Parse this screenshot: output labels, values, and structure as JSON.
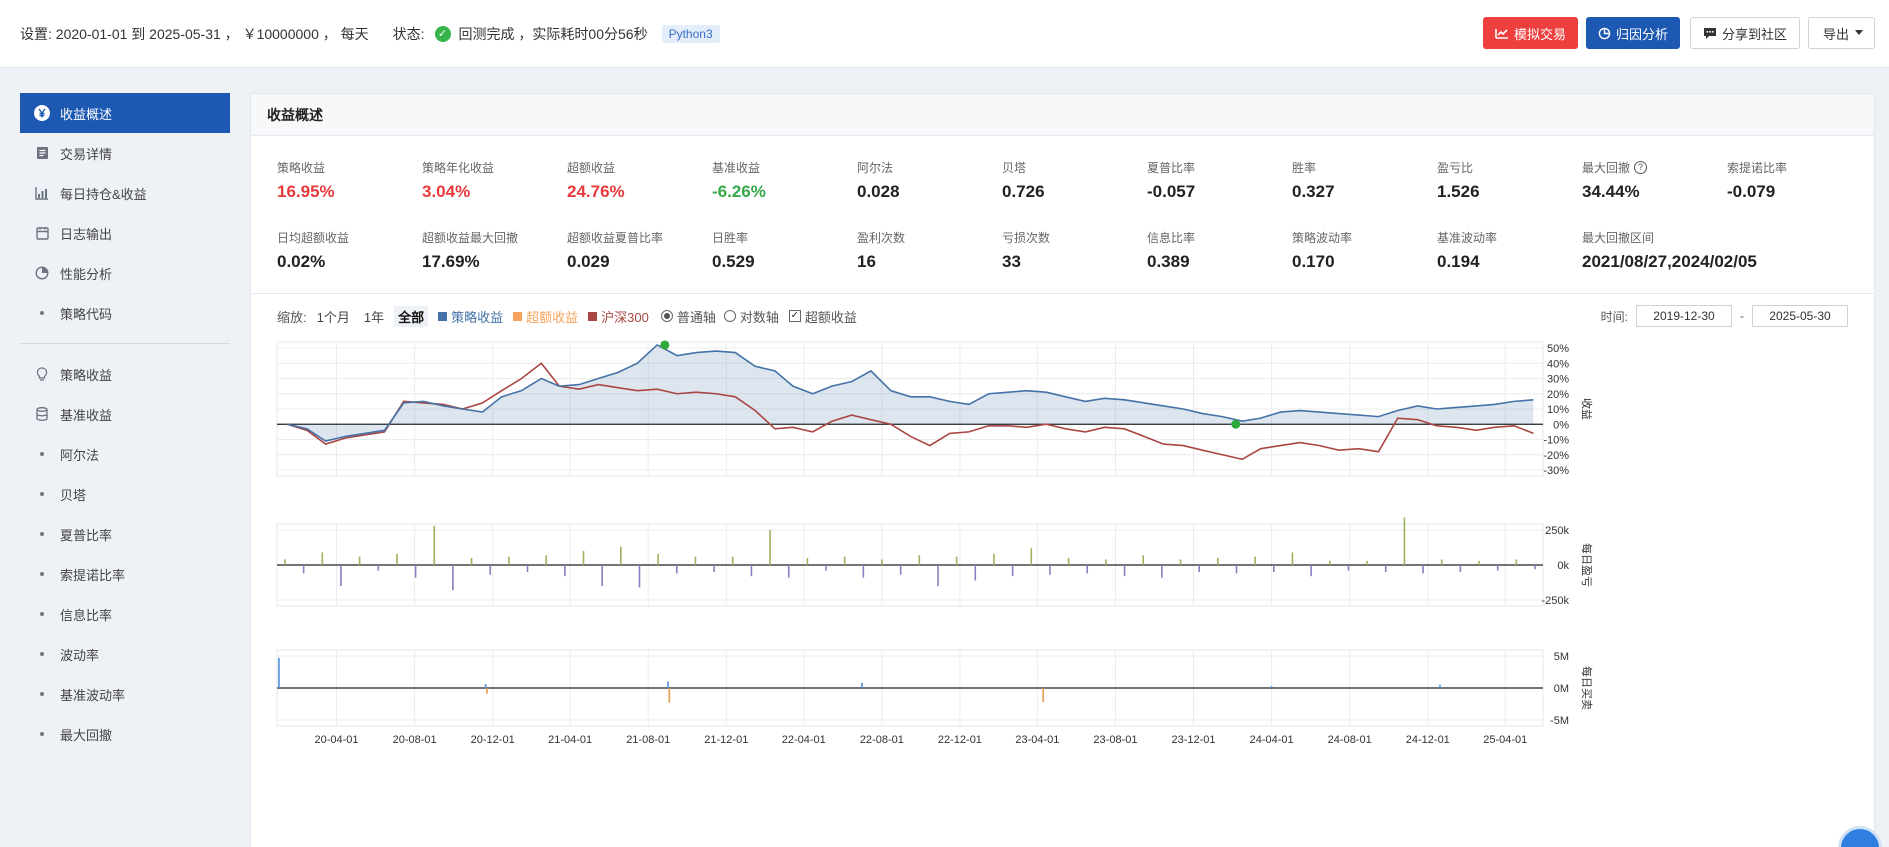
{
  "topbar": {
    "settings": "设置:  2020-01-01 到 2025-05-31 ， ￥10000000 ， 每天",
    "status_label": "状态:",
    "status_text": "回测完成 ，实际耗时00分56秒",
    "language": "Python3",
    "buttons": {
      "simulate": "模拟交易",
      "attribution": "归因分析",
      "share": "分享到社区",
      "export": "导出"
    },
    "icons": {
      "status": "check-circle-icon",
      "simulate": "line-chart-icon",
      "attribution": "pie-chart-icon",
      "share": "chat-bubble-icon",
      "export": "caret-down-icon"
    }
  },
  "sidebar": {
    "items": [
      {
        "label": "收益概述",
        "icon": "yen-icon"
      },
      {
        "label": "交易详情",
        "icon": "document-icon"
      },
      {
        "label": "每日持仓&收益",
        "icon": "bar-chart-icon"
      },
      {
        "label": "日志输出",
        "icon": "calendar-icon"
      },
      {
        "label": "性能分析",
        "icon": "pie-icon"
      },
      {
        "label": "策略代码",
        "icon": "dot"
      },
      {
        "label": "策略收益",
        "icon": "bulb-icon"
      },
      {
        "label": "基准收益",
        "icon": "database-icon"
      },
      {
        "label": "阿尔法",
        "icon": "dot"
      },
      {
        "label": "贝塔",
        "icon": "dot"
      },
      {
        "label": "夏普比率",
        "icon": "dot"
      },
      {
        "label": "索提诺比率",
        "icon": "dot"
      },
      {
        "label": "信息比率",
        "icon": "dot"
      },
      {
        "label": "波动率",
        "icon": "dot"
      },
      {
        "label": "基准波动率",
        "icon": "dot"
      },
      {
        "label": "最大回撤",
        "icon": "dot"
      }
    ]
  },
  "main": {
    "title": "收益概述",
    "metrics_row1": [
      {
        "label": "策略收益",
        "value": "16.95%",
        "color": "#e8393c"
      },
      {
        "label": "策略年化收益",
        "value": "3.04%",
        "color": "#e8393c"
      },
      {
        "label": "超额收益",
        "value": "24.76%",
        "color": "#e8393c"
      },
      {
        "label": "基准收益",
        "value": "-6.26%",
        "color": "#36a84a"
      },
      {
        "label": "阿尔法",
        "value": "0.028"
      },
      {
        "label": "贝塔",
        "value": "0.726"
      },
      {
        "label": "夏普比率",
        "value": "-0.057"
      },
      {
        "label": "胜率",
        "value": "0.327"
      },
      {
        "label": "盈亏比",
        "value": "1.526"
      },
      {
        "label": "最大回撤",
        "value": "34.44%",
        "help": "?"
      },
      {
        "label": "索提诺比率",
        "value": "-0.079"
      }
    ],
    "metrics_row2": [
      {
        "label": "日均超额收益",
        "value": "0.02%"
      },
      {
        "label": "超额收益最大回撤",
        "value": "17.69%"
      },
      {
        "label": "超额收益夏普比率",
        "value": "0.029"
      },
      {
        "label": "日胜率",
        "value": "0.529"
      },
      {
        "label": "盈利次数",
        "value": "16"
      },
      {
        "label": "亏损次数",
        "value": "33"
      },
      {
        "label": "信息比率",
        "value": "0.389"
      },
      {
        "label": "策略波动率",
        "value": "0.170"
      },
      {
        "label": "基准波动率",
        "value": "0.194"
      },
      {
        "label": "最大回撤区间",
        "value": "2021/08/27,2024/02/05"
      }
    ],
    "controls": {
      "zoom_label": "缩放:",
      "zoom": [
        "1个月",
        "1年",
        "全部"
      ],
      "zoom_selected": "全部",
      "legend": [
        {
          "name": "策略收益",
          "color": "#4572a7"
        },
        {
          "name": "超额收益",
          "color": "#f7a35c"
        },
        {
          "name": "沪深300",
          "color": "#aa4643"
        }
      ],
      "axis_normal": "普通轴",
      "axis_log": "对数轴",
      "axis_selected": "普通轴",
      "excess_checkbox": "超额收益",
      "excess_checked": true,
      "time_label": "时间:",
      "date_from": "2019-12-30",
      "date_sep": "-",
      "date_to": "2025-05-30"
    }
  },
  "chart_data": [
    {
      "type": "line",
      "title": "",
      "ylabel": "收益",
      "ylim": [
        -30,
        50
      ],
      "y_ticks": [
        "50%",
        "40%",
        "30%",
        "20%",
        "10%",
        "0%",
        "-10%",
        "-20%",
        "-30%"
      ],
      "x": [
        "2020-01",
        "2020-02",
        "2020-03",
        "2020-04",
        "2020-05",
        "2020-06",
        "2020-07",
        "2020-08",
        "2020-09",
        "2020-10",
        "2020-11",
        "2020-12",
        "2021-01",
        "2021-02",
        "2021-03",
        "2021-04",
        "2021-05",
        "2021-06",
        "2021-07",
        "2021-08",
        "2021-09",
        "2021-10",
        "2021-11",
        "2021-12",
        "2022-01",
        "2022-02",
        "2022-03",
        "2022-04",
        "2022-05",
        "2022-06",
        "2022-07",
        "2022-08",
        "2022-09",
        "2022-10",
        "2022-11",
        "2022-12",
        "2023-01",
        "2023-02",
        "2023-03",
        "2023-04",
        "2023-05",
        "2023-06",
        "2023-07",
        "2023-08",
        "2023-09",
        "2023-10",
        "2023-11",
        "2023-12",
        "2024-01",
        "2024-02",
        "2024-03",
        "2024-04",
        "2024-05",
        "2024-06",
        "2024-07",
        "2024-08",
        "2024-09",
        "2024-10",
        "2024-11",
        "2024-12",
        "2025-01",
        "2025-02",
        "2025-03",
        "2025-04",
        "2025-05"
      ],
      "series": [
        {
          "name": "策略收益",
          "color": "#4572a7",
          "values": [
            0,
            -3,
            -11,
            -8,
            -6,
            -4,
            14,
            15,
            12,
            10,
            8,
            18,
            22,
            30,
            25,
            26,
            30,
            34,
            40,
            52,
            45,
            47,
            48,
            47,
            38,
            35,
            25,
            20,
            25,
            28,
            35,
            22,
            18,
            18,
            15,
            13,
            20,
            21,
            22,
            21,
            18,
            15,
            17,
            16,
            14,
            12,
            10,
            7,
            5,
            2,
            4,
            8,
            9,
            8,
            7,
            6,
            5,
            9,
            12,
            10,
            11,
            12,
            13,
            15,
            16
          ]
        },
        {
          "name": "沪深300",
          "color": "#aa4643",
          "values": [
            0,
            -4,
            -13,
            -9,
            -7,
            -5,
            15,
            14,
            13,
            10,
            14,
            22,
            30,
            40,
            25,
            23,
            26,
            24,
            22,
            23,
            20,
            21,
            20,
            18,
            9,
            -3,
            -2,
            -5,
            2,
            6,
            3,
            0,
            -8,
            -14,
            -6,
            -5,
            -1,
            -1,
            -2,
            0,
            -3,
            -5,
            -2,
            -3,
            -8,
            -13,
            -14,
            -17,
            -20,
            -23,
            -16,
            -14,
            -12,
            -14,
            -17,
            -16,
            -18,
            4,
            3,
            -1,
            -2,
            -4,
            -2,
            -1,
            -6
          ]
        }
      ],
      "markers": [
        {
          "label": "max-drawdown-start",
          "x": "2021-08-27",
          "y": 52
        },
        {
          "label": "max-drawdown-end",
          "x": "2024-02-05",
          "y": 0
        }
      ]
    },
    {
      "type": "bar",
      "title": "",
      "ylabel": "每日盈亏",
      "ylim": [
        -250000,
        250000
      ],
      "y_ticks": [
        "250k",
        "0k",
        "-250k"
      ],
      "series": [
        {
          "name": "每日盈亏",
          "values": [
            40000,
            -60000,
            90000,
            -150000,
            60000,
            -40000,
            80000,
            -90000,
            280000,
            -180000,
            50000,
            -70000,
            60000,
            -50000,
            70000,
            -80000,
            100000,
            -150000,
            130000,
            -160000,
            80000,
            -60000,
            60000,
            -50000,
            60000,
            -80000,
            250000,
            -90000,
            50000,
            -40000,
            60000,
            -90000,
            40000,
            -70000,
            70000,
            -150000,
            60000,
            -110000,
            80000,
            -80000,
            120000,
            -70000,
            50000,
            -60000,
            40000,
            -80000,
            70000,
            -90000,
            40000,
            -50000,
            50000,
            -60000,
            60000,
            -50000,
            90000,
            -80000,
            30000,
            -40000,
            30000,
            -50000,
            340000,
            -60000,
            40000,
            -50000,
            30000,
            -40000,
            40000,
            -30000
          ]
        }
      ]
    },
    {
      "type": "bar",
      "title": "",
      "ylabel": "每日买卖",
      "ylim": [
        -5000000,
        5000000
      ],
      "y_ticks": [
        "5M",
        "0M",
        "-5M"
      ],
      "x_ticks": [
        "20-04-01",
        "20-08-01",
        "20-12-01",
        "21-04-01",
        "21-08-01",
        "21-12-01",
        "22-04-01",
        "22-08-01",
        "22-12-01",
        "23-04-01",
        "23-08-01",
        "23-12-01",
        "24-04-01",
        "24-08-01",
        "24-12-01",
        "25-04-01"
      ],
      "series": [
        {
          "name": "每日买卖",
          "values": [
            {
              "x": "2020-01-02",
              "y": 4700000
            },
            {
              "x": "2020-11-20",
              "y": 600000
            },
            {
              "x": "2020-11-22",
              "y": -900000
            },
            {
              "x": "2021-09-01",
              "y": 1000000
            },
            {
              "x": "2021-09-03",
              "y": -2300000
            },
            {
              "x": "2022-07-01",
              "y": 800000
            },
            {
              "x": "2023-04-10",
              "y": -2200000
            },
            {
              "x": "2024-04-01",
              "y": 300000
            },
            {
              "x": "2024-12-20",
              "y": 500000
            }
          ]
        }
      ]
    }
  ]
}
